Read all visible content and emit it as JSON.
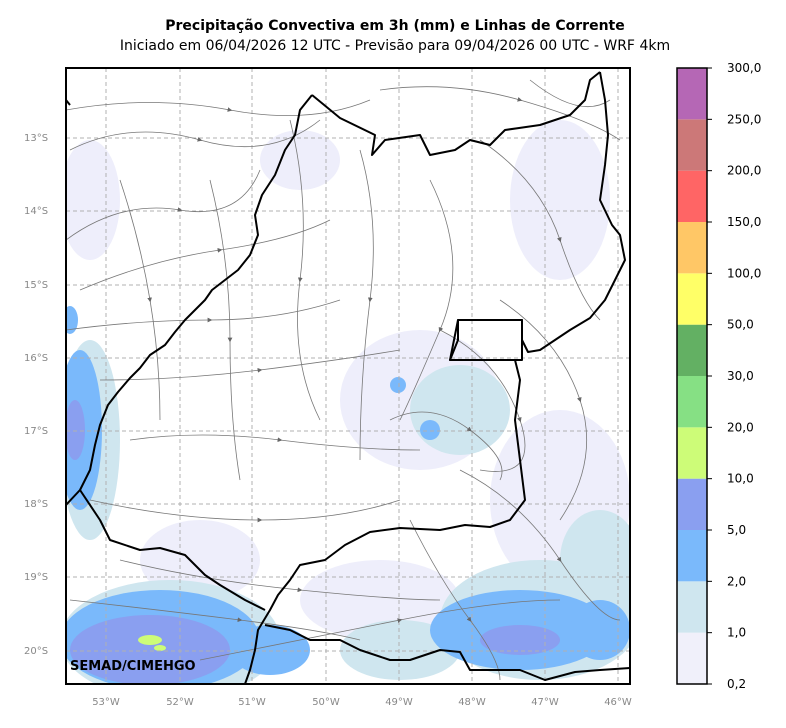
{
  "title": "Precipitação Convectiva em 3h (mm) e Linhas de Corrente",
  "subtitle": "Iniciado em 06/04/2026 12 UTC - Previsão para 09/04/2026 00 UTC - WRF 4km",
  "watermark": "SEMAD/CIMEHGO",
  "latitudes": [
    "13°S",
    "14°S",
    "15°S",
    "16°S",
    "17°S",
    "18°S",
    "19°S",
    "20°S"
  ],
  "longitudes": [
    "53°W",
    "52°W",
    "51°W",
    "50°W",
    "49°W",
    "48°W",
    "47°W",
    "46°W"
  ],
  "colorbar": {
    "labels": [
      "0,2",
      "1,0",
      "2,0",
      "5,0",
      "10,0",
      "20,0",
      "30,0",
      "50,0",
      "100,0",
      "150,0",
      "200,0",
      "250,0",
      "300,0"
    ],
    "colors": [
      "#f0f0fa",
      "#cfe6ef",
      "#7ab9fb",
      "#8a9ff0",
      "#cdfc78",
      "#86e084",
      "#63b063",
      "#ffff67",
      "#ffc766",
      "#ff6565",
      "#cc7878",
      "#b567b5"
    ]
  }
}
